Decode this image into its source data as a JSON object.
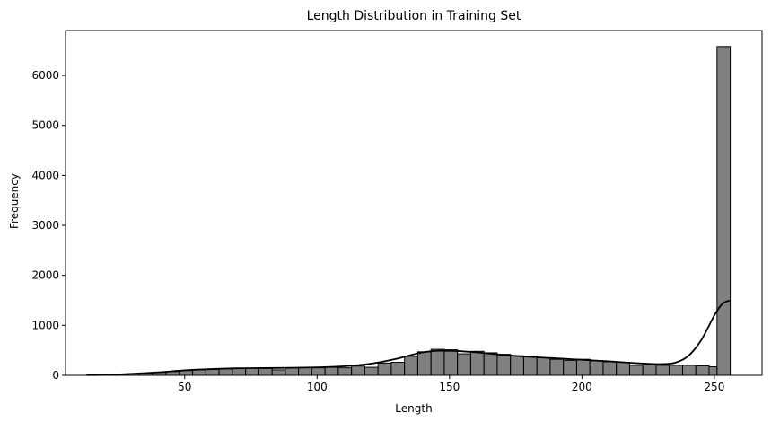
{
  "chart_data": {
    "type": "bar",
    "title": "Length Distribution in Training Set",
    "xlabel": "Length",
    "ylabel": "Frequency",
    "xlim": [
      5,
      268
    ],
    "ylim": [
      0,
      6900
    ],
    "xticks": [
      50,
      100,
      150,
      200,
      250
    ],
    "yticks": [
      0,
      1000,
      2000,
      3000,
      4000,
      5000,
      6000
    ],
    "grid": false,
    "bar_color": "#808080",
    "edge_color": "#000000",
    "kde_color": "#000000",
    "bins": [
      [
        13,
        18,
        5
      ],
      [
        18,
        23,
        10
      ],
      [
        23,
        28,
        15
      ],
      [
        28,
        33,
        25
      ],
      [
        33,
        38,
        40
      ],
      [
        38,
        43,
        60
      ],
      [
        43,
        48,
        75
      ],
      [
        48,
        53,
        95
      ],
      [
        53,
        58,
        110
      ],
      [
        58,
        63,
        120
      ],
      [
        63,
        68,
        130
      ],
      [
        68,
        73,
        140
      ],
      [
        73,
        78,
        145
      ],
      [
        78,
        83,
        140
      ],
      [
        83,
        88,
        110
      ],
      [
        88,
        93,
        150
      ],
      [
        93,
        98,
        155
      ],
      [
        98,
        103,
        150
      ],
      [
        103,
        108,
        160
      ],
      [
        108,
        113,
        150
      ],
      [
        113,
        118,
        185
      ],
      [
        118,
        123,
        160
      ],
      [
        123,
        128,
        245
      ],
      [
        128,
        133,
        260
      ],
      [
        133,
        138,
        380
      ],
      [
        138,
        143,
        470
      ],
      [
        143,
        148,
        520
      ],
      [
        148,
        153,
        510
      ],
      [
        153,
        158,
        430
      ],
      [
        158,
        163,
        480
      ],
      [
        163,
        168,
        450
      ],
      [
        168,
        173,
        420
      ],
      [
        173,
        178,
        390
      ],
      [
        178,
        183,
        380
      ],
      [
        183,
        188,
        350
      ],
      [
        188,
        193,
        320
      ],
      [
        193,
        198,
        300
      ],
      [
        198,
        203,
        320
      ],
      [
        203,
        208,
        290
      ],
      [
        208,
        213,
        270
      ],
      [
        213,
        218,
        260
      ],
      [
        218,
        223,
        200
      ],
      [
        223,
        228,
        210
      ],
      [
        228,
        233,
        200
      ],
      [
        233,
        238,
        200
      ],
      [
        238,
        243,
        200
      ],
      [
        243,
        248,
        190
      ],
      [
        248,
        251,
        170
      ],
      [
        251,
        256,
        6580
      ]
    ],
    "kde": {
      "x": [
        13,
        20,
        30,
        40,
        50,
        60,
        70,
        80,
        90,
        100,
        110,
        120,
        130,
        135,
        140,
        145,
        150,
        155,
        160,
        170,
        180,
        190,
        200,
        210,
        220,
        225,
        230,
        235,
        240,
        245,
        250,
        253,
        256
      ],
      "y": [
        5,
        10,
        30,
        60,
        100,
        125,
        140,
        145,
        150,
        160,
        180,
        230,
        330,
        400,
        460,
        490,
        490,
        480,
        460,
        410,
        370,
        340,
        310,
        280,
        245,
        230,
        225,
        250,
        380,
        700,
        1200,
        1430,
        1500
      ]
    }
  }
}
